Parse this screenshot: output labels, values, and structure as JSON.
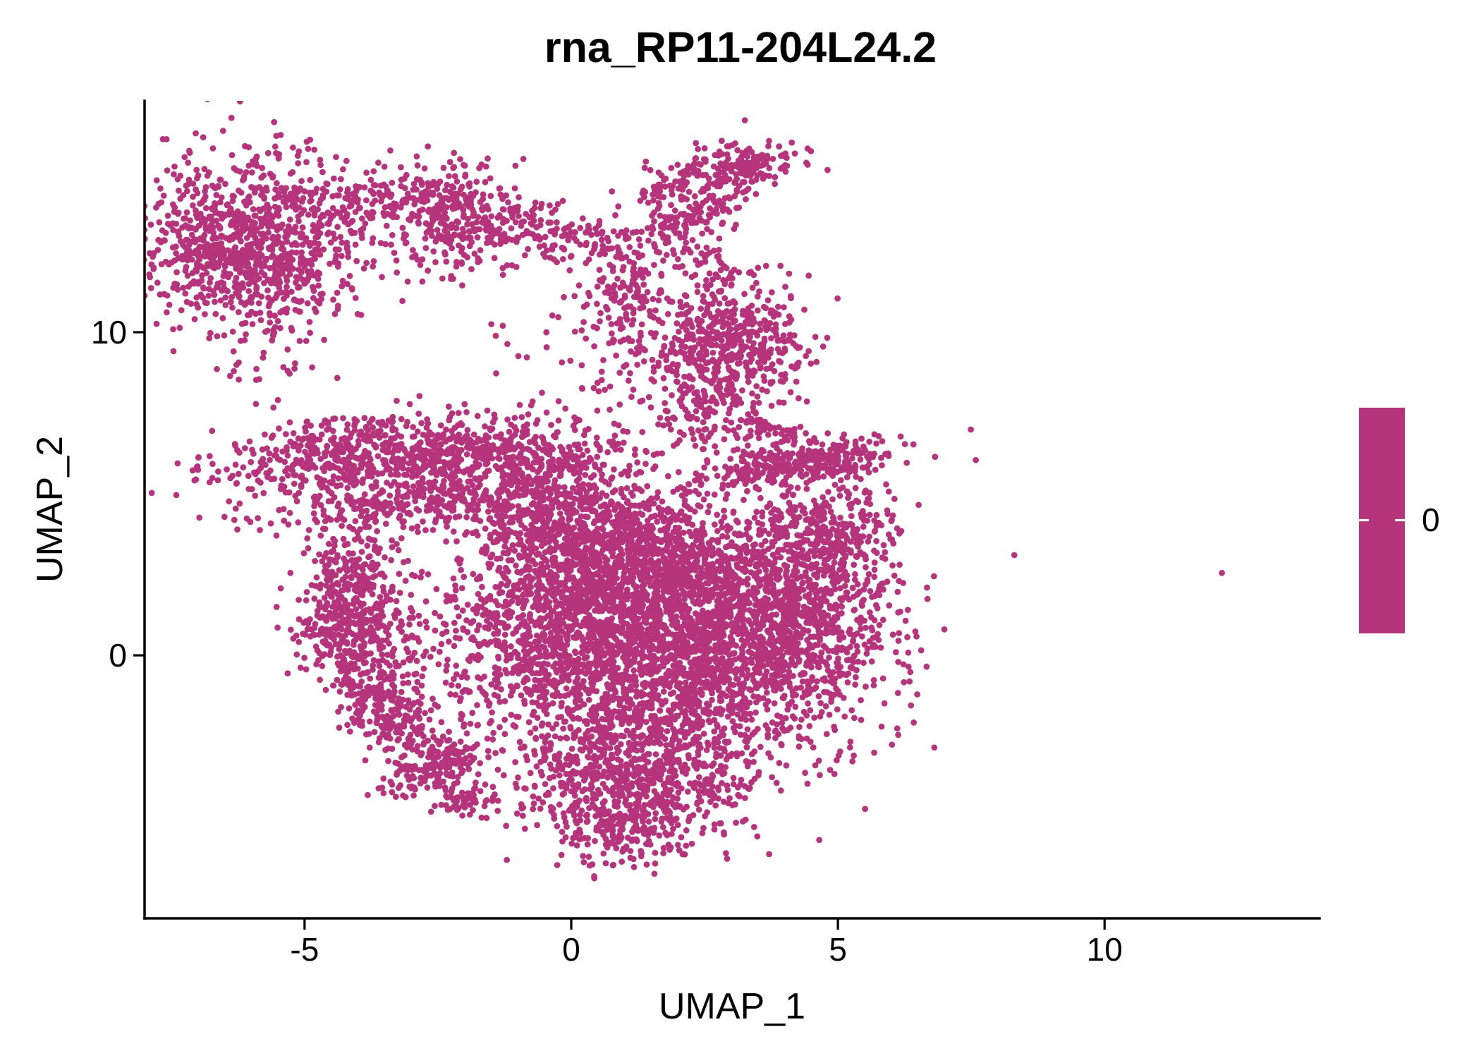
{
  "chart_data": {
    "type": "scatter",
    "title": "rna_RP11-204L24.2",
    "xlabel": "UMAP_1",
    "ylabel": "UMAP_2",
    "x_tick_values": [
      -5,
      0,
      5,
      10
    ],
    "x_tick_labels": [
      "-5",
      "0",
      "5",
      "10"
    ],
    "y_tick_values": [
      0,
      10
    ],
    "y_tick_labels": [
      "0",
      "10"
    ],
    "xlim": [
      -8.0,
      14.03
    ],
    "ylim": [
      -8.14,
      17.16
    ],
    "grid": false,
    "background_color": "#ffffff",
    "axis_color": "#000000",
    "point_color": "#B5347B",
    "point_radius_px": 4.4,
    "legend": {
      "position": "right",
      "style": "colorbar",
      "color": "#B5347B",
      "tick_label": "0"
    },
    "n_points_approx": 11700,
    "seed": 7,
    "clusters_note": "approximation of point cloud as [cx, cy, sigma_x, sigma_y, angle_deg, n] gaussian clumps in data coords",
    "clusters": [
      [
        -6.0,
        12.8,
        0.95,
        1.35,
        0,
        1050
      ],
      [
        -3.5,
        14.05,
        0.8,
        0.45,
        8,
        170
      ],
      [
        -2.0,
        13.5,
        0.65,
        0.8,
        0,
        260
      ],
      [
        -0.3,
        13.1,
        0.85,
        0.45,
        -20,
        130
      ],
      [
        1.1,
        11.6,
        0.4,
        0.9,
        12,
        110
      ],
      [
        3.2,
        15.2,
        0.6,
        0.34,
        8,
        150
      ],
      [
        1.75,
        14.4,
        0.25,
        0.3,
        0,
        45
      ],
      [
        2.2,
        13.5,
        0.55,
        0.22,
        28,
        80
      ],
      [
        2.7,
        14.4,
        0.55,
        0.45,
        0,
        60
      ],
      [
        2.9,
        9.7,
        0.75,
        1.0,
        0,
        520
      ],
      [
        2.45,
        12.2,
        0.35,
        0.75,
        10,
        70
      ],
      [
        2.6,
        7.6,
        0.5,
        0.65,
        0,
        110
      ],
      [
        4.3,
        5.9,
        1.0,
        0.32,
        12,
        340
      ],
      [
        3.8,
        7.0,
        0.55,
        0.14,
        -35,
        50
      ],
      [
        -3.4,
        6.3,
        1.6,
        0.55,
        9,
        680
      ],
      [
        -3.1,
        4.7,
        1.3,
        0.38,
        8,
        270
      ],
      [
        -0.7,
        5.9,
        1.05,
        0.6,
        14,
        340
      ],
      [
        1.8,
        0.3,
        1.7,
        1.8,
        0,
        2600
      ],
      [
        0.0,
        4.0,
        1.0,
        0.95,
        0,
        600
      ],
      [
        1.6,
        3.0,
        1.3,
        0.95,
        0,
        680
      ],
      [
        4.2,
        1.4,
        0.95,
        1.45,
        0,
        680
      ],
      [
        4.8,
        3.9,
        0.65,
        0.75,
        0,
        260
      ],
      [
        1.2,
        -3.5,
        1.15,
        1.1,
        0,
        680
      ],
      [
        1.0,
        -5.3,
        0.6,
        0.65,
        0,
        190
      ],
      [
        -0.5,
        1.0,
        0.8,
        1.15,
        0,
        380
      ],
      [
        -4.0,
        0.7,
        0.55,
        1.05,
        0,
        420
      ],
      [
        -3.4,
        -1.8,
        0.38,
        0.8,
        18,
        210
      ],
      [
        -2.6,
        -3.5,
        0.55,
        0.28,
        40,
        150
      ],
      [
        -1.9,
        -4.4,
        0.35,
        0.25,
        30,
        60
      ],
      [
        -4.1,
        2.6,
        0.45,
        0.75,
        0,
        140
      ],
      [
        -2.2,
        -1.3,
        0.6,
        0.9,
        0,
        70
      ],
      [
        0.9,
        10.4,
        0.5,
        0.9,
        0,
        70
      ],
      [
        0.3,
        8.7,
        1.3,
        1.2,
        0,
        40
      ],
      [
        -5.4,
        8.8,
        0.6,
        0.6,
        0,
        14
      ]
    ],
    "outliers": [
      [
        12.2,
        2.55
      ]
    ]
  }
}
